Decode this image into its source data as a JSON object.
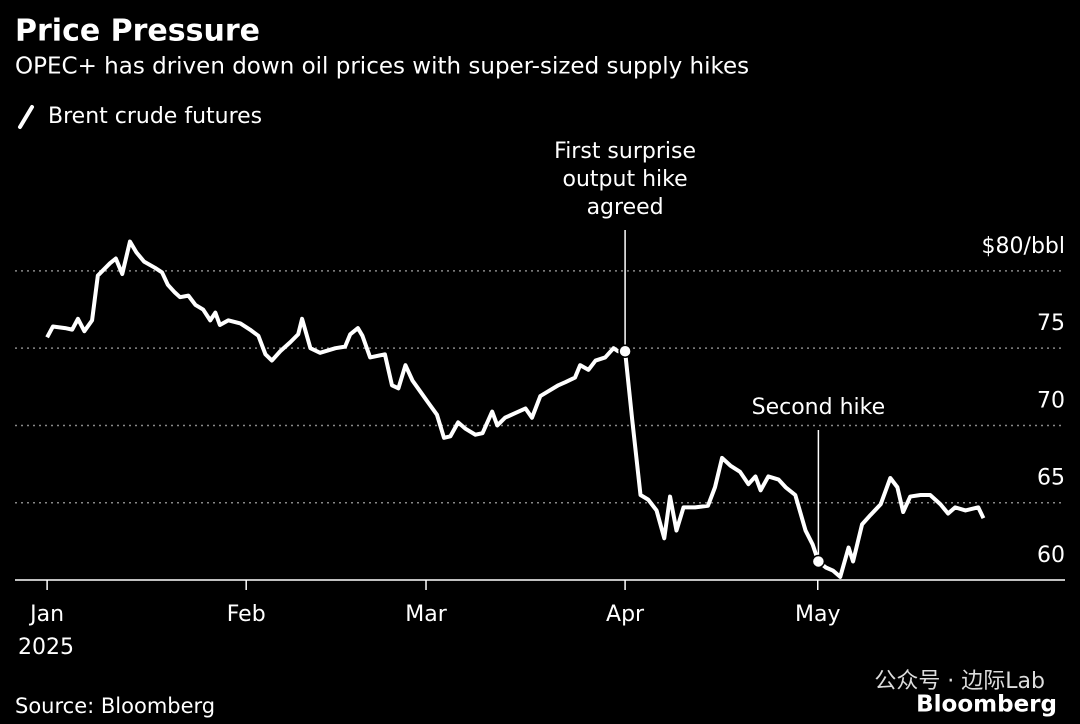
{
  "chart_data": {
    "type": "line",
    "title": "Price Pressure",
    "subtitle": "OPEC+ has driven down oil prices with super-sized supply hikes",
    "source": "Source: Bloomberg",
    "brand": "Bloomberg",
    "watermark": "公众号 · 边际Lab",
    "x_sublabel": "2025",
    "xlim": [
      -5,
      158.5
    ],
    "xticks": [
      {
        "value": 0,
        "label": "Jan"
      },
      {
        "value": 31,
        "label": "Feb"
      },
      {
        "value": 59,
        "label": "Mar"
      },
      {
        "value": 90,
        "label": "Apr"
      },
      {
        "value": 120,
        "label": "May"
      }
    ],
    "ylim": [
      60,
      82
    ],
    "yticks": [
      60,
      65,
      70,
      75,
      {
        "value": 80,
        "label": "$80/bbl"
      }
    ],
    "grid": true,
    "series": [
      {
        "name": "Brent crude futures",
        "color": "#ffffff",
        "x": [
          0,
          0.9,
          2.8,
          3.9,
          4.8,
          5.8,
          7.0,
          7.9,
          9.8,
          10.7,
          11.7,
          12.9,
          13.9,
          15.1,
          16.8,
          17.9,
          18.8,
          19.9,
          20.7,
          22.0,
          23.1,
          24.3,
          25.4,
          26.2,
          26.9,
          28.2,
          30.1,
          31.6,
          32.9,
          34.0,
          35.0,
          36.3,
          37.9,
          39.1,
          39.7,
          41.0,
          42.5,
          44.9,
          46.4,
          47.2,
          48.4,
          49.1,
          50.3,
          52.6,
          53.7,
          54.7,
          55.8,
          56.9,
          58.1,
          59.3,
          60.7,
          61.8,
          62.8,
          64.0,
          65.1,
          66.7,
          67.8,
          69.3,
          70.1,
          71.3,
          72.9,
          74.5,
          75.5,
          76.8,
          78.0,
          79.6,
          80.7,
          82.2,
          83.0,
          84.3,
          85.4,
          86.9,
          88.2,
          88.9,
          90.0,
          91.1,
          92.4,
          93.6,
          94.9,
          96.1,
          97.0,
          98.0,
          99.1,
          100.9,
          102.9,
          104.0,
          105.1,
          106.4,
          107.9,
          109.2,
          110.3,
          111.1,
          112.3,
          113.9,
          115.0,
          116.5,
          118.1,
          119.2,
          120.1,
          121.3,
          122.4,
          123.5,
          124.8,
          125.5,
          126.9,
          128.2,
          129.8,
          131.3,
          132.4,
          133.3,
          134.4,
          136.0,
          137.5,
          139.1,
          140.3,
          141.4,
          143.0,
          145.0,
          145.8
        ],
        "values": [
          75.7,
          76.4,
          76.3,
          76.2,
          76.9,
          76.1,
          76.8,
          79.7,
          80.5,
          80.8,
          79.8,
          81.9,
          81.2,
          80.6,
          80.2,
          79.9,
          79.1,
          78.6,
          78.3,
          78.4,
          77.8,
          77.5,
          76.8,
          77.3,
          76.5,
          76.8,
          76.6,
          76.2,
          75.8,
          74.6,
          74.2,
          74.8,
          75.4,
          75.9,
          76.9,
          75.0,
          74.7,
          75.0,
          75.1,
          75.9,
          76.3,
          75.8,
          74.4,
          74.6,
          72.6,
          72.4,
          73.9,
          72.9,
          72.2,
          71.5,
          70.7,
          69.2,
          69.3,
          70.2,
          69.8,
          69.4,
          69.5,
          70.9,
          70.0,
          70.5,
          70.8,
          71.1,
          70.5,
          71.9,
          72.2,
          72.6,
          72.8,
          73.1,
          73.9,
          73.6,
          74.2,
          74.4,
          75.0,
          74.8,
          74.8,
          70.4,
          65.5,
          65.2,
          64.5,
          62.7,
          65.4,
          63.2,
          64.7,
          64.7,
          64.8,
          66.0,
          67.9,
          67.4,
          67.0,
          66.2,
          66.7,
          65.8,
          66.7,
          66.5,
          66.0,
          65.5,
          63.2,
          62.3,
          61.2,
          60.8,
          60.6,
          60.2,
          62.1,
          61.2,
          63.6,
          64.2,
          64.9,
          66.6,
          66.0,
          64.4,
          65.4,
          65.5,
          65.5,
          64.9,
          64.3,
          64.7,
          64.5,
          64.7,
          64.0
        ]
      }
    ],
    "annotations": [
      {
        "text": [
          "First surprise",
          "output hike",
          "agreed"
        ],
        "x": 90.0,
        "y": 74.8
      },
      {
        "text": [
          "Second hike"
        ],
        "x": 120.1,
        "y": 61.2
      }
    ]
  }
}
